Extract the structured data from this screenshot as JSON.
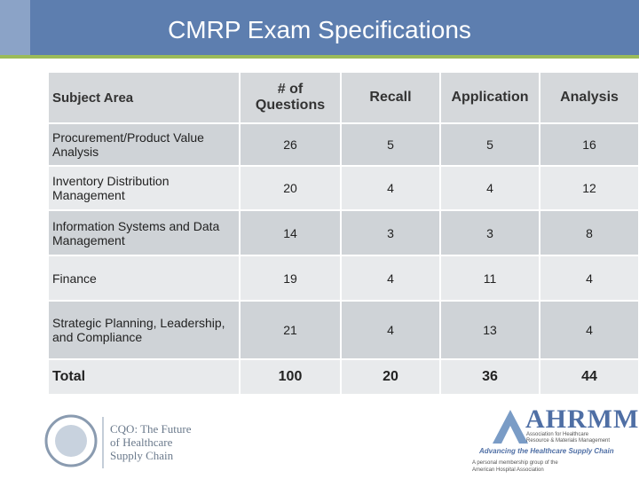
{
  "header": {
    "title": "CMRP Exam Specifications"
  },
  "table": {
    "columns": [
      "Subject Area",
      "# of Questions",
      "Recall",
      "Application",
      "Analysis"
    ],
    "rows": [
      [
        "Procurement/Product Value Analysis",
        26,
        5,
        5,
        16
      ],
      [
        "Inventory Distribution Management",
        20,
        4,
        4,
        12
      ],
      [
        "Information Systems and Data Management",
        14,
        3,
        3,
        8
      ],
      [
        "Finance",
        19,
        4,
        11,
        4
      ],
      [
        "Strategic Planning, Leadership, and Compliance",
        21,
        4,
        13,
        4
      ],
      [
        "Total",
        100,
        20,
        36,
        44
      ]
    ]
  },
  "footer": {
    "left_logo": [
      "CQO: The Future",
      "of Healthcare",
      "Supply Chain"
    ],
    "right_logo": {
      "name": "AHRMM",
      "full_name": [
        "Association for Healthcare",
        "Resource & Materials Management"
      ],
      "tagline": "Advancing the Healthcare Supply Chain",
      "note": [
        "A personal membership group of the",
        "American Hospital Association"
      ]
    }
  }
}
